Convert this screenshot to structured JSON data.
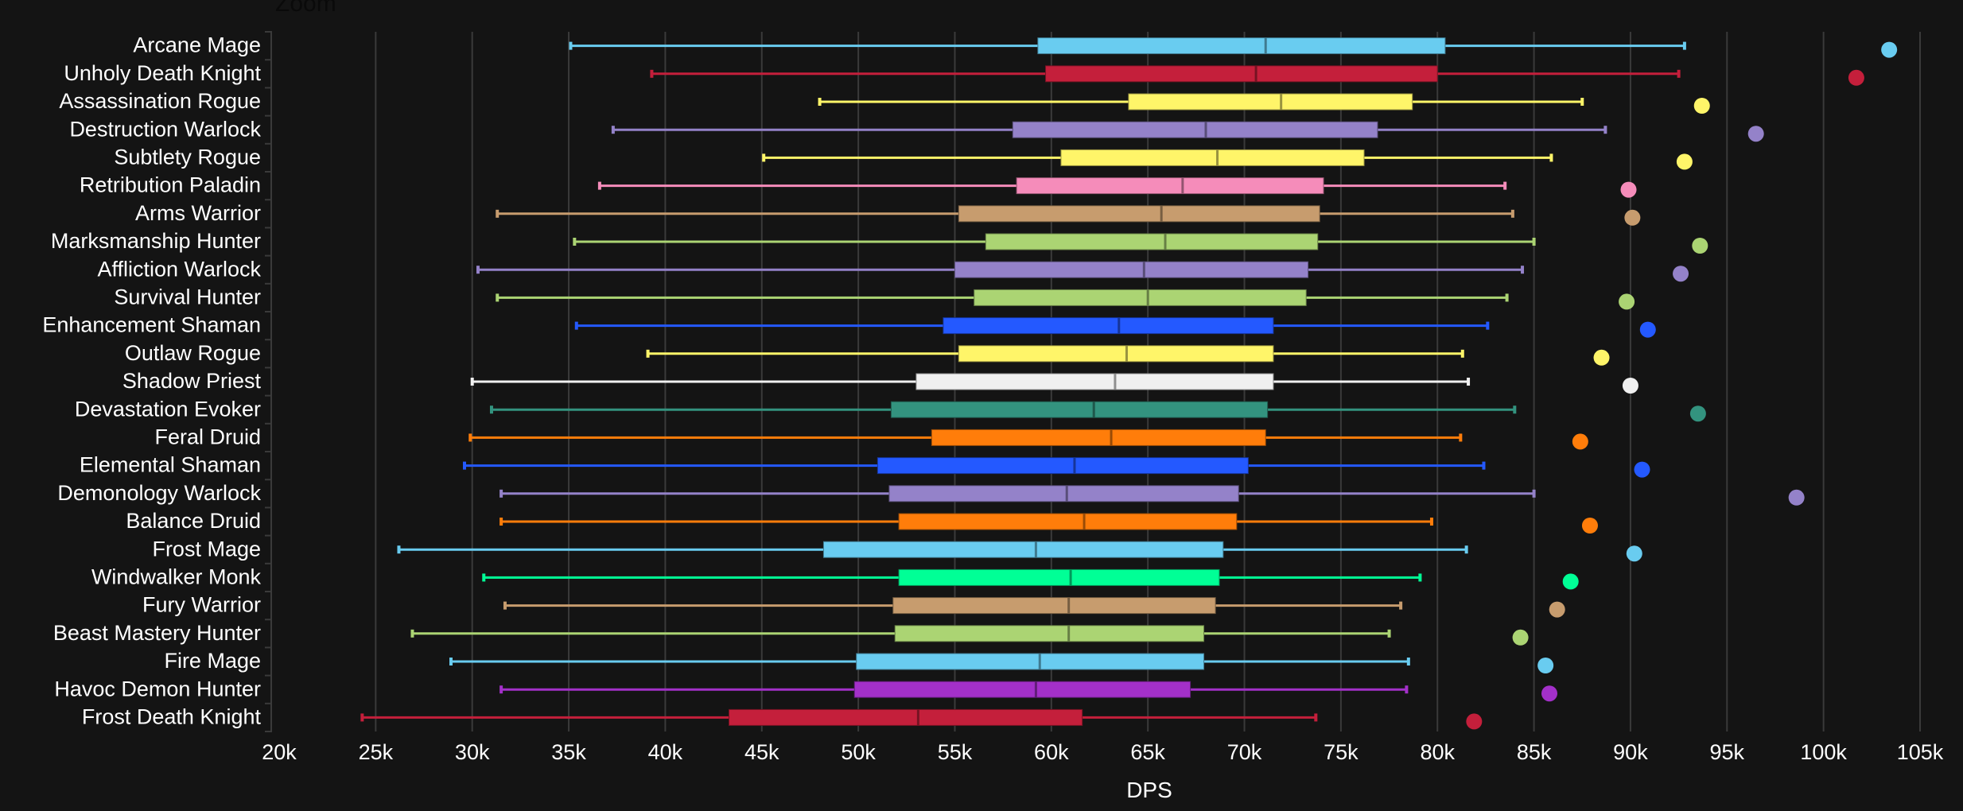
{
  "zoom_label": "Zoom",
  "chart_data": {
    "type": "boxplot",
    "orientation": "horizontal",
    "xlabel": "DPS",
    "ylabel": "",
    "xlim": [
      20000,
      105000
    ],
    "x_ticks": [
      20000,
      25000,
      30000,
      35000,
      40000,
      45000,
      50000,
      55000,
      60000,
      65000,
      70000,
      75000,
      80000,
      85000,
      90000,
      95000,
      100000,
      105000
    ],
    "x_tick_labels": [
      "20k",
      "25k",
      "30k",
      "35k",
      "40k",
      "45k",
      "50k",
      "55k",
      "60k",
      "65k",
      "70k",
      "75k",
      "80k",
      "85k",
      "90k",
      "95k",
      "100k",
      "105k"
    ],
    "grid": "vertical",
    "background": "#141414",
    "series": [
      {
        "name": "Arcane Mage",
        "color": "#69ccf0",
        "min": 35100,
        "q1": 59300,
        "median": 71100,
        "q3": 80400,
        "max": 92800,
        "max_point": 103400
      },
      {
        "name": "Unholy Death Knight",
        "color": "#c41f3b",
        "min": 39300,
        "q1": 59700,
        "median": 70600,
        "q3": 80000,
        "max": 92500,
        "max_point": 101700
      },
      {
        "name": "Assassination Rogue",
        "color": "#fff569",
        "min": 48000,
        "q1": 64000,
        "median": 71900,
        "q3": 78700,
        "max": 87500,
        "max_point": 93700
      },
      {
        "name": "Destruction Warlock",
        "color": "#9482c9",
        "min": 37300,
        "q1": 58000,
        "median": 68000,
        "q3": 76900,
        "max": 88700,
        "max_point": 96500
      },
      {
        "name": "Subtlety Rogue",
        "color": "#fff569",
        "min": 45100,
        "q1": 60500,
        "median": 68600,
        "q3": 76200,
        "max": 85900,
        "max_point": 92800
      },
      {
        "name": "Retribution Paladin",
        "color": "#f58cba",
        "min": 36600,
        "q1": 58200,
        "median": 66800,
        "q3": 74100,
        "max": 83500,
        "max_point": 89900
      },
      {
        "name": "Arms Warrior",
        "color": "#c79c6e",
        "min": 31300,
        "q1": 55200,
        "median": 65700,
        "q3": 73900,
        "max": 83900,
        "max_point": 90100
      },
      {
        "name": "Marksmanship Hunter",
        "color": "#abd473",
        "min": 35300,
        "q1": 56600,
        "median": 65900,
        "q3": 73800,
        "max": 85000,
        "max_point": 93600
      },
      {
        "name": "Affliction Warlock",
        "color": "#9482c9",
        "min": 30300,
        "q1": 55000,
        "median": 64800,
        "q3": 73300,
        "max": 84400,
        "max_point": 92600
      },
      {
        "name": "Survival Hunter",
        "color": "#abd473",
        "min": 31300,
        "q1": 56000,
        "median": 65000,
        "q3": 73200,
        "max": 83600,
        "max_point": 89800
      },
      {
        "name": "Enhancement Shaman",
        "color": "#2459ff",
        "min": 35400,
        "q1": 54400,
        "median": 63500,
        "q3": 71500,
        "max": 82600,
        "max_point": 90900
      },
      {
        "name": "Outlaw Rogue",
        "color": "#fff569",
        "min": 39100,
        "q1": 55200,
        "median": 63900,
        "q3": 71500,
        "max": 81300,
        "max_point": 88500
      },
      {
        "name": "Shadow Priest",
        "color": "#f0f0f0",
        "min": 30000,
        "q1": 53000,
        "median": 63300,
        "q3": 71500,
        "max": 81600,
        "max_point": 90000
      },
      {
        "name": "Devastation Evoker",
        "color": "#33937f",
        "min": 31000,
        "q1": 51700,
        "median": 62200,
        "q3": 71200,
        "max": 84000,
        "max_point": 93500
      },
      {
        "name": "Feral Druid",
        "color": "#ff7d0a",
        "min": 29900,
        "q1": 53800,
        "median": 63100,
        "q3": 71100,
        "max": 81200,
        "max_point": 87400
      },
      {
        "name": "Elemental Shaman",
        "color": "#2459ff",
        "min": 29600,
        "q1": 51000,
        "median": 61200,
        "q3": 70200,
        "max": 82400,
        "max_point": 90600
      },
      {
        "name": "Demonology Warlock",
        "color": "#9482c9",
        "min": 31500,
        "q1": 51600,
        "median": 60800,
        "q3": 69700,
        "max": 85000,
        "max_point": 98600
      },
      {
        "name": "Balance Druid",
        "color": "#ff7d0a",
        "min": 31500,
        "q1": 52100,
        "median": 61700,
        "q3": 69600,
        "max": 79700,
        "max_point": 87900
      },
      {
        "name": "Frost Mage",
        "color": "#69ccf0",
        "min": 26200,
        "q1": 48200,
        "median": 59200,
        "q3": 68900,
        "max": 81500,
        "max_point": 90200
      },
      {
        "name": "Windwalker Monk",
        "color": "#00ff96",
        "min": 30600,
        "q1": 52100,
        "median": 61000,
        "q3": 68700,
        "max": 79100,
        "max_point": 86900
      },
      {
        "name": "Fury Warrior",
        "color": "#c79c6e",
        "min": 31700,
        "q1": 51800,
        "median": 60900,
        "q3": 68500,
        "max": 78100,
        "max_point": 86200
      },
      {
        "name": "Beast Mastery Hunter",
        "color": "#abd473",
        "min": 26900,
        "q1": 51900,
        "median": 60900,
        "q3": 67900,
        "max": 77500,
        "max_point": 84300
      },
      {
        "name": "Fire Mage",
        "color": "#69ccf0",
        "min": 28900,
        "q1": 49900,
        "median": 59400,
        "q3": 67900,
        "max": 78500,
        "max_point": 85600
      },
      {
        "name": "Havoc Demon Hunter",
        "color": "#a330c9",
        "min": 31500,
        "q1": 49800,
        "median": 59200,
        "q3": 67200,
        "max": 78400,
        "max_point": 85800
      },
      {
        "name": "Frost Death Knight",
        "color": "#c41f3b",
        "min": 24300,
        "q1": 43300,
        "median": 53100,
        "q3": 61600,
        "max": 73700,
        "max_point": 81900
      }
    ]
  }
}
